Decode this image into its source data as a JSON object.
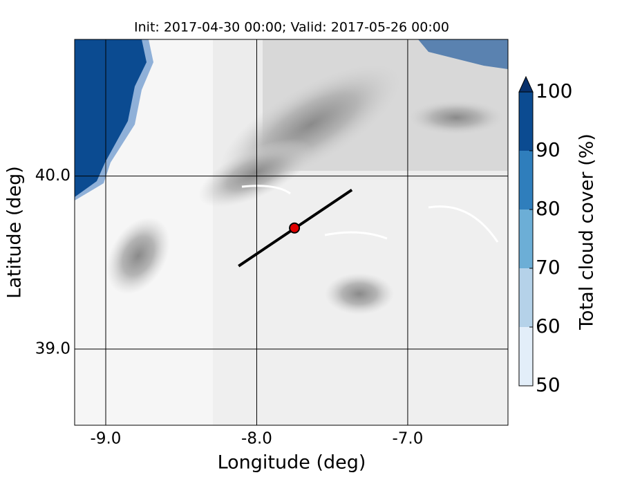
{
  "chart_data": {
    "type": "map",
    "title": "Init: 2017-04-30 00:00; Valid: 2017-05-26 00:00",
    "x_label": "Longitude (deg)",
    "y_label": "Latitude (deg)",
    "xlim": [
      -9.206,
      -6.336
    ],
    "ylim": [
      38.56,
      40.79
    ],
    "xticks": [
      {
        "value": -9,
        "label": "-9.0"
      },
      {
        "value": -8,
        "label": "-8.0"
      },
      {
        "value": -7,
        "label": "-7.0"
      }
    ],
    "yticks": [
      {
        "value": 39,
        "label": "39.0"
      },
      {
        "value": 40,
        "label": "40.0"
      }
    ],
    "grid": true,
    "section": {
      "x": [
        -8.12,
        -7.37
      ],
      "y": [
        39.48,
        39.92
      ],
      "color": "#000000"
    },
    "point": {
      "x": -7.75,
      "y": 39.7,
      "color": "#e00000"
    },
    "colorbar": {
      "label": "Total cloud cover (%)",
      "lim": [
        50,
        100
      ],
      "ticks": [
        50,
        60,
        70,
        80,
        90,
        100
      ],
      "colors": [
        "#e3eef9",
        "#b5d2e9",
        "#6caed6",
        "#2f7ebc",
        "#0b4b91"
      ],
      "extend_color": "#08306b"
    }
  }
}
